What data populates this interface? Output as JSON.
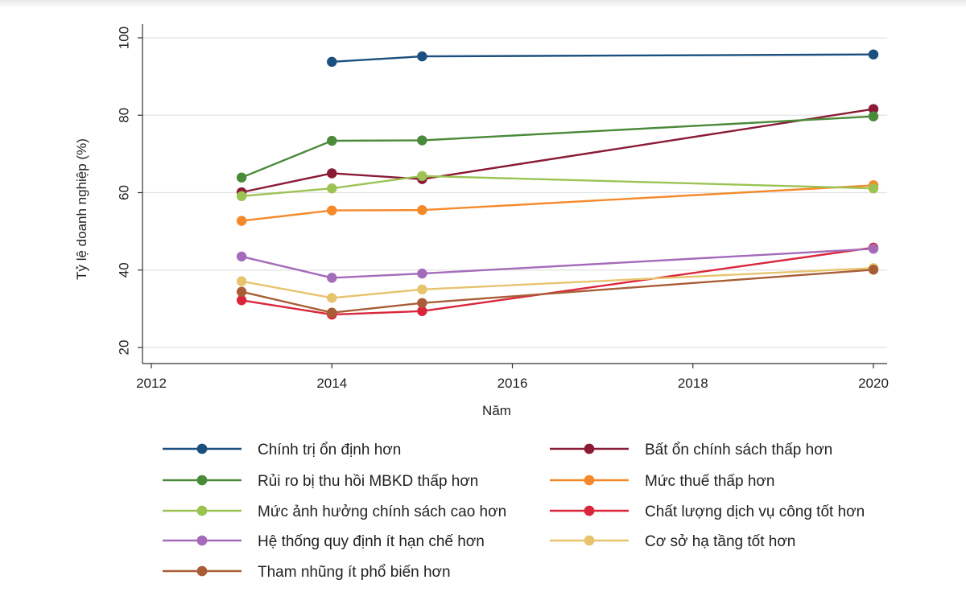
{
  "chart_data": {
    "type": "line",
    "title": "",
    "xlabel": "Năm",
    "ylabel": "Tỷ lệ doanh nghiệp (%)",
    "xlim": [
      2012,
      2020
    ],
    "ylim": [
      20,
      100
    ],
    "xticks": [
      "2012",
      "2014",
      "2016",
      "2018",
      "2020"
    ],
    "yticks": [
      "20",
      "40",
      "60",
      "80",
      "100"
    ],
    "grid": true,
    "legend_position": "bottom",
    "series": [
      {
        "name": "Chính trị ổn định hơn",
        "color": "#1a4f7f",
        "x": [
          2014,
          2015,
          2020
        ],
        "values": [
          93.8,
          95.2,
          95.7
        ]
      },
      {
        "name": "Bất ổn chính sách thấp hơn",
        "color": "#8a1a35",
        "x": [
          2013,
          2014,
          2015,
          2020
        ],
        "values": [
          60.1,
          65.0,
          63.5,
          81.6
        ]
      },
      {
        "name": "Rủi ro bị thu hồi MBKD thấp hơn",
        "color": "#4a8a3a",
        "x": [
          2013,
          2014,
          2015,
          2020
        ],
        "values": [
          63.9,
          73.4,
          73.5,
          79.7
        ]
      },
      {
        "name": "Mức thuế thấp hơn",
        "color": "#f5892a",
        "x": [
          2013,
          2014,
          2015,
          2020
        ],
        "values": [
          52.7,
          55.4,
          55.5,
          61.9
        ]
      },
      {
        "name": "Mức ảnh hưởng chính sách cao hơn",
        "color": "#9cc352",
        "x": [
          2013,
          2014,
          2015,
          2020
        ],
        "values": [
          59.1,
          61.1,
          64.3,
          61.1
        ]
      },
      {
        "name": "Chất lượng dịch vụ công tốt hơn",
        "color": "#d9263a",
        "x": [
          2013,
          2014,
          2015,
          2020
        ],
        "values": [
          32.2,
          28.5,
          29.4,
          45.8
        ]
      },
      {
        "name": "Hệ thống quy định ít hạn chế hơn",
        "color": "#a46bb8",
        "x": [
          2013,
          2014,
          2015,
          2020
        ],
        "values": [
          43.5,
          38.0,
          39.1,
          45.5
        ]
      },
      {
        "name": "Cơ sở hạ tầng tốt hơn",
        "color": "#e8c36e",
        "x": [
          2013,
          2014,
          2015,
          2020
        ],
        "values": [
          37.1,
          32.8,
          35.0,
          40.5
        ]
      },
      {
        "name": "Tham nhũng ít phổ biến hơn",
        "color": "#a85d36",
        "x": [
          2013,
          2014,
          2015,
          2020
        ],
        "values": [
          34.4,
          29.0,
          31.5,
          40.1
        ]
      }
    ]
  }
}
